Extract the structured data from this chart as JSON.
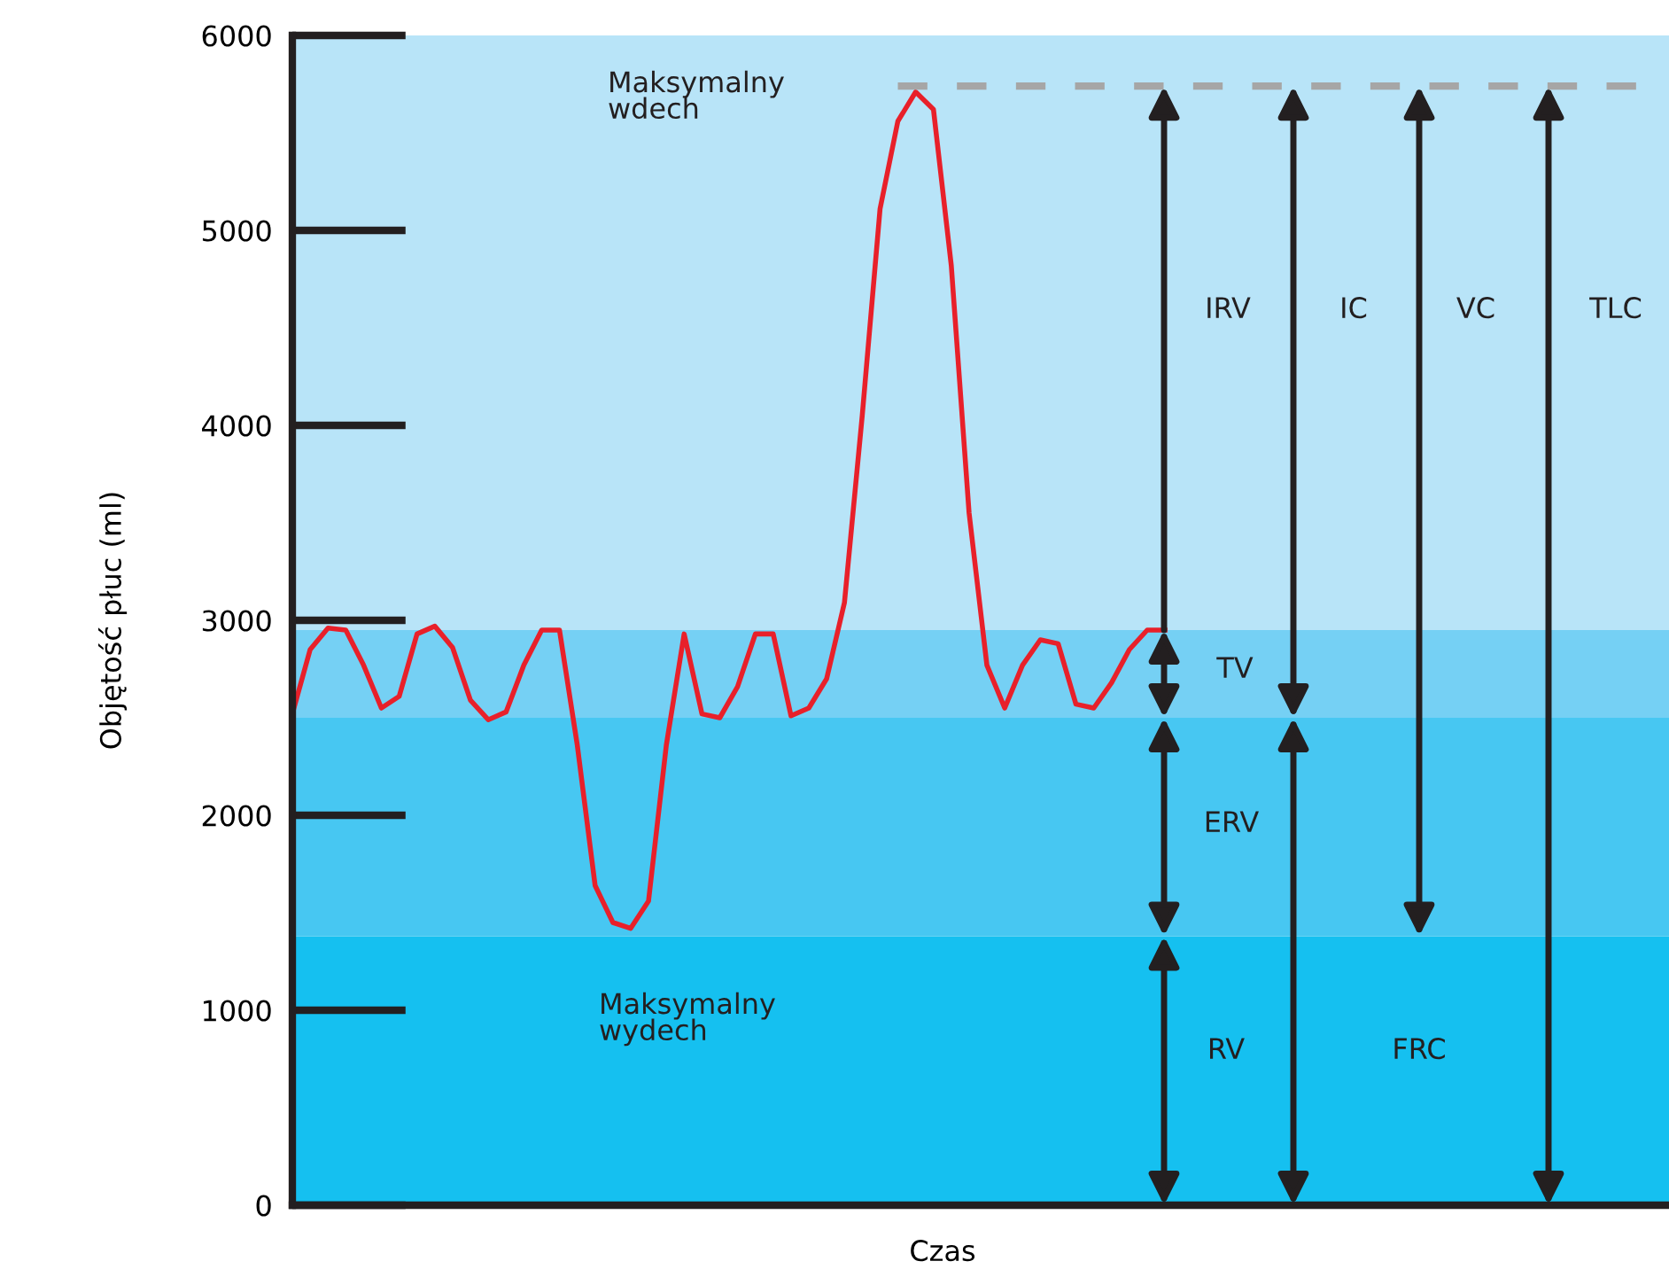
{
  "chart_data": {
    "type": "line",
    "xlabel": "Czas",
    "ylabel": "Objętość płuc (ml)",
    "categories": [
      null,
      null,
      null,
      null,
      null,
      null,
      null,
      null,
      null,
      null,
      null,
      null,
      null,
      null,
      null,
      null,
      null,
      null,
      null,
      null,
      null,
      null,
      null,
      null,
      null,
      null,
      null,
      null,
      null,
      null,
      null,
      null,
      null,
      null,
      null,
      null,
      null,
      null,
      null,
      null,
      null,
      null,
      null,
      null,
      null,
      null,
      null,
      null,
      null,
      null,
      null,
      null,
      null,
      null,
      null,
      null,
      null,
      null,
      null,
      null,
      null,
      null,
      null,
      null,
      null,
      null,
      null,
      null,
      null,
      null,
      null,
      null,
      null,
      null,
      null,
      null,
      null,
      null
    ],
    "series": [
      {
        "color": "#e8202a",
        "line_style": "solid",
        "values": [
          2520,
          2850,
          2960,
          2950,
          2770,
          2550,
          2610,
          2930,
          2970,
          2860,
          2590,
          2490,
          2530,
          2770,
          2950,
          2950,
          2360,
          1640,
          1450,
          1420,
          1560,
          2360,
          2930,
          2520,
          2500,
          2660,
          2930,
          2930,
          2510,
          2550,
          2700,
          3090,
          4050,
          5110,
          5560,
          5710,
          5620,
          4820,
          3550,
          2770,
          2550,
          2770,
          2900,
          2880,
          2570,
          2550,
          2680,
          2850,
          2950,
          2950,
          null,
          null,
          null,
          null,
          null,
          null,
          null,
          null,
          null,
          null,
          null,
          null,
          null,
          null,
          null,
          null,
          null,
          null,
          null,
          null,
          null,
          null,
          null,
          null,
          null,
          null,
          null,
          null
        ]
      },
      {
        "color": "#a6a6a6",
        "line_style": "dashed",
        "values": [
          null,
          null,
          null,
          null,
          null,
          null,
          null,
          null,
          null,
          null,
          null,
          null,
          null,
          null,
          null,
          null,
          null,
          null,
          null,
          null,
          null,
          null,
          null,
          null,
          null,
          null,
          null,
          null,
          null,
          null,
          null,
          null,
          null,
          null,
          5740,
          5740,
          5740,
          5740,
          5740,
          5740,
          5740,
          5740,
          5740,
          5740,
          5740,
          5740,
          5740,
          5740,
          5740,
          5740,
          5740,
          5740,
          5740,
          5740,
          5740,
          5740,
          5740,
          5740,
          5740,
          5740,
          5740,
          5740,
          5740,
          5740,
          5740,
          5740,
          5740,
          5740,
          5740,
          5740,
          5740,
          5740,
          5740,
          5740,
          5740,
          5740,
          5740,
          null
        ]
      }
    ],
    "bands": [
      {
        "axis": "y",
        "from": 0,
        "to": 1380,
        "color": "#15c0f0"
      },
      {
        "axis": "y",
        "from": 1380,
        "to": 2500,
        "color": "#47c7f2"
      },
      {
        "axis": "y",
        "from": 2500,
        "to": 2950,
        "color": "#75d0f4"
      },
      {
        "axis": "y",
        "from": 2950,
        "to": 6000,
        "color": "#b8e4f8"
      }
    ],
    "annotations": [
      "Maksymalny\nwdech",
      "Maksymalny\nwydech",
      "IRV",
      "IC",
      "VC",
      "TLC",
      "TV",
      "ERV",
      "RV",
      "FRC"
    ],
    "ylim": [
      0,
      6000
    ],
    "yticks": [
      0,
      1000,
      2000,
      3000,
      4000,
      5000,
      6000
    ],
    "tick_labels": "y",
    "marker": "none"
  }
}
